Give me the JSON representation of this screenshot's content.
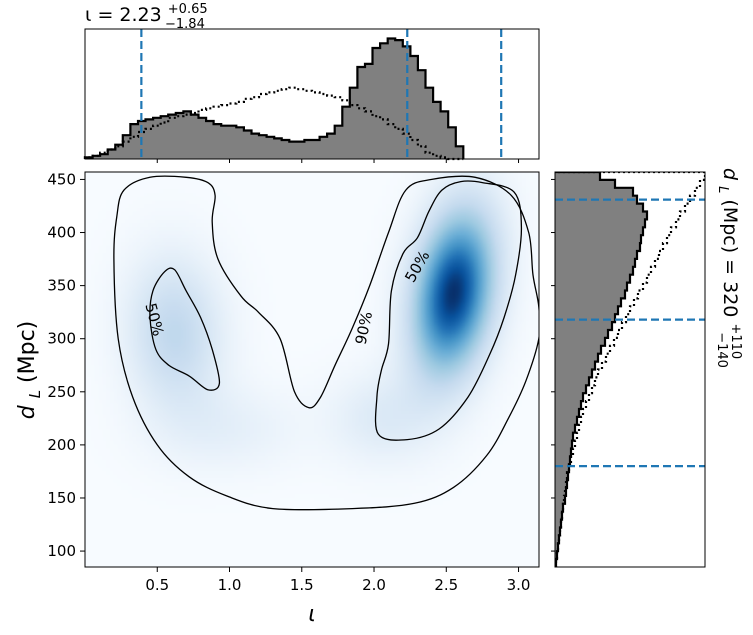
{
  "chart_data": {
    "type": "joint-posterior",
    "colors": {
      "hist_fill": "#808080",
      "hist_edge": "#000000",
      "quantile_line": "#1f77b4",
      "density_low": "#f7fbff",
      "density_high": "#08306b",
      "contour": "#000000"
    },
    "main": {
      "xlabel": "ι",
      "ylabel_main": "d",
      "ylabel_sub": "L",
      "ylabel_unit": " (Mpc)",
      "xlim": [
        0.0,
        3.14159
      ],
      "ylim": [
        85,
        457
      ],
      "xticks": [
        0.5,
        1.0,
        1.5,
        2.0,
        2.5,
        3.0
      ],
      "xticklabels": [
        "0.5",
        "1.0",
        "1.5",
        "2.0",
        "2.5",
        "3.0"
      ],
      "yticks": [
        100,
        150,
        200,
        250,
        300,
        350,
        400,
        450
      ],
      "yticklabels": [
        "100",
        "150",
        "200",
        "250",
        "300",
        "350",
        "400",
        "450"
      ],
      "colormap": "Blues",
      "density_modes": [
        {
          "iota": 2.55,
          "dL": 343,
          "sigma_iota": 0.2,
          "sigma_dL": 55,
          "rho": 0.25,
          "weight": 1.0
        },
        {
          "iota": 0.62,
          "dL": 305,
          "sigma_iota": 0.23,
          "sigma_dL": 50,
          "rho": -0.05,
          "weight": 0.32
        },
        {
          "iota": 1.0,
          "dL": 215,
          "sigma_iota": 0.35,
          "sigma_dL": 28,
          "rho": 0.0,
          "weight": 0.1
        },
        {
          "iota": 2.05,
          "dL": 225,
          "sigma_iota": 0.25,
          "sigma_dL": 30,
          "rho": 0.0,
          "weight": 0.15
        }
      ],
      "contours": [
        {
          "label": "90%",
          "label_pos": [
            1.93,
            310
          ],
          "points": [
            [
              0.2,
              375
            ],
            [
              0.22,
              415
            ],
            [
              0.27,
              440
            ],
            [
              0.45,
              452
            ],
            [
              0.7,
              452
            ],
            [
              0.85,
              447
            ],
            [
              0.9,
              435
            ],
            [
              0.88,
              410
            ],
            [
              0.92,
              375
            ],
            [
              1.08,
              340
            ],
            [
              1.2,
              325
            ],
            [
              1.35,
              300
            ],
            [
              1.45,
              250
            ],
            [
              1.55,
              235
            ],
            [
              1.63,
              245
            ],
            [
              1.73,
              275
            ],
            [
              1.85,
              310
            ],
            [
              1.97,
              350
            ],
            [
              2.1,
              400
            ],
            [
              2.22,
              440
            ],
            [
              2.4,
              450
            ],
            [
              2.7,
              452
            ],
            [
              2.95,
              435
            ],
            [
              3.07,
              400
            ],
            [
              3.1,
              360
            ],
            [
              3.14,
              330
            ],
            [
              3.14,
              300
            ],
            [
              3.05,
              260
            ],
            [
              2.93,
              225
            ],
            [
              2.78,
              190
            ],
            [
              2.55,
              160
            ],
            [
              2.28,
              145
            ],
            [
              1.85,
              140
            ],
            [
              1.3,
              140
            ],
            [
              0.98,
              152
            ],
            [
              0.72,
              170
            ],
            [
              0.5,
              200
            ],
            [
              0.33,
              245
            ],
            [
              0.23,
              300
            ]
          ]
        },
        {
          "label": "50%",
          "label_pos": [
            0.48,
            318
          ],
          "points": [
            [
              0.45,
              320
            ],
            [
              0.47,
              345
            ],
            [
              0.55,
              363
            ],
            [
              0.62,
              365
            ],
            [
              0.7,
              345
            ],
            [
              0.8,
              320
            ],
            [
              0.88,
              290
            ],
            [
              0.93,
              258
            ],
            [
              0.85,
              252
            ],
            [
              0.72,
              265
            ],
            [
              0.58,
              275
            ],
            [
              0.49,
              290
            ]
          ]
        },
        {
          "label": "50%",
          "label_pos": [
            2.3,
            368
          ],
          "points": [
            [
              2.1,
              295
            ],
            [
              2.12,
              345
            ],
            [
              2.2,
              380
            ],
            [
              2.3,
              395
            ],
            [
              2.38,
              420
            ],
            [
              2.47,
              440
            ],
            [
              2.6,
              448
            ],
            [
              2.75,
              447
            ],
            [
              2.97,
              438
            ],
            [
              3.02,
              405
            ],
            [
              2.98,
              360
            ],
            [
              2.9,
              320
            ],
            [
              2.8,
              285
            ],
            [
              2.65,
              245
            ],
            [
              2.45,
              215
            ],
            [
              2.23,
              205
            ],
            [
              2.03,
              210
            ],
            [
              2.02,
              245
            ],
            [
              2.05,
              270
            ]
          ]
        }
      ]
    },
    "top_marginal": {
      "title_main": "ι = 2.23",
      "title_sup": "+0.65",
      "title_sub": "−1.84",
      "xlim": [
        0.0,
        3.14159
      ],
      "bin_edges_start": 0.0,
      "bin_width": 0.05236,
      "counts": [
        1,
        2,
        3,
        6,
        9,
        15,
        22,
        24,
        25,
        26,
        27,
        28,
        29,
        30,
        28,
        26,
        24,
        22,
        21,
        21,
        20,
        18,
        16,
        15,
        14,
        13,
        12,
        11,
        11,
        12,
        12,
        14,
        16,
        21,
        33,
        45,
        58,
        60,
        70,
        73,
        76,
        75,
        71,
        65,
        56,
        45,
        36,
        30,
        20,
        8
      ],
      "prior_counts": [
        1,
        2,
        4,
        6,
        8,
        11,
        14,
        17,
        19,
        21,
        23,
        26,
        27,
        28,
        29,
        31,
        32,
        33,
        34,
        35,
        36,
        38,
        39,
        41,
        42,
        43,
        44,
        45,
        44,
        43,
        42,
        41,
        40,
        39,
        37,
        34,
        32,
        30,
        27,
        25,
        22,
        19,
        16,
        12,
        8,
        4,
        2,
        1,
        0,
        0
      ],
      "ymax": 82,
      "quantiles": [
        0.39,
        2.23,
        2.88
      ]
    },
    "right_marginal": {
      "label_main": "d",
      "label_sub": "L",
      "label_rest": " (Mpc) = 320",
      "label_sup": "+110",
      "label_subscript": "−140",
      "ylim": [
        85,
        457
      ],
      "bin_edges_start": 85,
      "bin_width": 7.44,
      "counts": [
        1,
        2,
        3,
        4,
        5,
        6,
        7,
        8,
        10,
        11,
        12,
        13,
        14,
        15,
        16,
        17,
        18,
        20,
        22,
        24,
        26,
        28,
        31,
        34,
        37,
        40,
        43,
        46,
        50,
        53,
        57,
        60,
        63,
        66,
        70,
        72,
        75,
        78,
        80,
        82,
        85,
        86,
        88,
        90,
        92,
        88,
        82,
        78,
        60,
        45
      ],
      "prior_counts": [
        1,
        2,
        3,
        4,
        5,
        6,
        7,
        8,
        9,
        10,
        11,
        12,
        14,
        16,
        18,
        20,
        22,
        24,
        26,
        28,
        31,
        34,
        37,
        40,
        43,
        47,
        51,
        55,
        59,
        63,
        67,
        71,
        75,
        79,
        83,
        88,
        92,
        96,
        100,
        104,
        108,
        112,
        116,
        121,
        125,
        130,
        135,
        140,
        145,
        150
      ],
      "xmax": 150,
      "quantiles": [
        180,
        318,
        431
      ]
    }
  }
}
